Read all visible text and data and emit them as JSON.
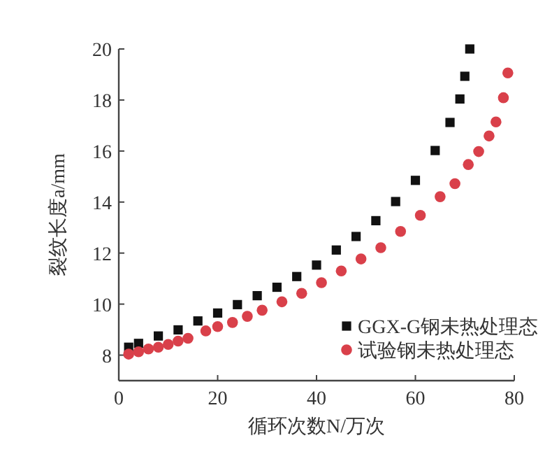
{
  "chart_data": {
    "type": "scatter",
    "xlabel": "循环次数N/万次",
    "ylabel": "裂纹长度a/mm",
    "xlim": [
      0,
      80
    ],
    "ylim": [
      7,
      20
    ],
    "xticks": [
      0,
      20,
      40,
      60,
      80
    ],
    "yticks": [
      8,
      10,
      12,
      14,
      16,
      18,
      20
    ],
    "grid": false,
    "legend": "bottom right",
    "series": [
      {
        "name": "GGX-G钢未热处理态",
        "color": "#111111",
        "marker": "square",
        "x": [
          2,
          4,
          8,
          12,
          16,
          20,
          24,
          28,
          32,
          36,
          40,
          44,
          48,
          52,
          56,
          60,
          64,
          67,
          69,
          70,
          71
        ],
        "values": [
          8.31,
          8.46,
          8.75,
          8.99,
          9.34,
          9.65,
          9.98,
          10.33,
          10.66,
          11.08,
          11.53,
          12.12,
          12.65,
          13.27,
          14.02,
          14.85,
          16.02,
          17.12,
          18.04,
          18.93,
          20
        ]
      },
      {
        "name": "试验钢未热处理态",
        "color": "#d9404a",
        "marker": "circle",
        "x": [
          2,
          4,
          6,
          8,
          10,
          12,
          14,
          17.6,
          20,
          23,
          26,
          29,
          33,
          37,
          41,
          45,
          49,
          53,
          57,
          61,
          65,
          68,
          70.7,
          72.8,
          74.9,
          76.3,
          77.8,
          78.7
        ],
        "values": [
          8.04,
          8.13,
          8.24,
          8.31,
          8.42,
          8.55,
          8.66,
          8.95,
          9.12,
          9.28,
          9.52,
          9.76,
          10.09,
          10.42,
          10.84,
          11.3,
          11.77,
          12.21,
          12.85,
          13.48,
          14.21,
          14.72,
          15.47,
          15.98,
          16.59,
          17.14,
          18.09,
          19.06
        ]
      }
    ]
  }
}
